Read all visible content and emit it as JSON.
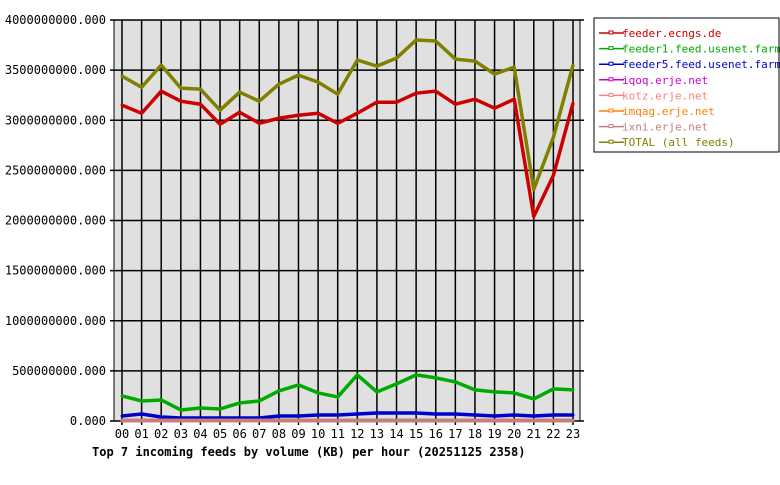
{
  "chart_data": {
    "type": "line",
    "title": "Top 7 incoming feeds by volume (KB) per hour (20251125 2358)",
    "xlabel": "",
    "ylabel": "",
    "categories": [
      "00",
      "01",
      "02",
      "03",
      "04",
      "05",
      "06",
      "07",
      "08",
      "09",
      "10",
      "11",
      "12",
      "13",
      "14",
      "15",
      "16",
      "17",
      "18",
      "19",
      "20",
      "21",
      "22",
      "23"
    ],
    "ylim": [
      0,
      4000000000
    ],
    "yticks": [
      0,
      500000000,
      1000000000,
      1500000000,
      2000000000,
      2500000000,
      3000000000,
      3500000000,
      4000000000
    ],
    "ytick_labels": [
      "0.000",
      "500000000.000",
      "1000000000.000",
      "1500000000.000",
      "2000000000.000",
      "2500000000.000",
      "3000000000.000",
      "3500000000.000",
      "4000000000.000"
    ],
    "grid": true,
    "legend_position": "right",
    "series": [
      {
        "name": "feeder.ecngs.de",
        "color": "#cc0000",
        "values": [
          3150000000,
          3070000000,
          3290000000,
          3190000000,
          3160000000,
          2960000000,
          3080000000,
          2970000000,
          3020000000,
          3050000000,
          3070000000,
          2970000000,
          3070000000,
          3180000000,
          3180000000,
          3270000000,
          3290000000,
          3160000000,
          3210000000,
          3120000000,
          3210000000,
          2040000000,
          2450000000,
          3170000000
        ]
      },
      {
        "name": "feeder1.feed.usenet.farm",
        "color": "#00aa00",
        "values": [
          250000000,
          200000000,
          210000000,
          110000000,
          130000000,
          120000000,
          180000000,
          200000000,
          300000000,
          360000000,
          280000000,
          240000000,
          460000000,
          290000000,
          370000000,
          460000000,
          430000000,
          390000000,
          310000000,
          290000000,
          280000000,
          220000000,
          320000000,
          310000000
        ]
      },
      {
        "name": "feeder5.feed.usenet.farm",
        "color": "#0000cc",
        "values": [
          50000000,
          70000000,
          40000000,
          30000000,
          30000000,
          30000000,
          30000000,
          30000000,
          50000000,
          50000000,
          60000000,
          60000000,
          70000000,
          80000000,
          80000000,
          80000000,
          70000000,
          70000000,
          60000000,
          50000000,
          60000000,
          50000000,
          60000000,
          60000000
        ]
      },
      {
        "name": "iqoq.erje.net",
        "color": "#cc00cc",
        "values": [
          5000000,
          5000000,
          5000000,
          5000000,
          5000000,
          5000000,
          5000000,
          5000000,
          5000000,
          5000000,
          5000000,
          5000000,
          5000000,
          5000000,
          5000000,
          5000000,
          5000000,
          5000000,
          5000000,
          5000000,
          5000000,
          5000000,
          5000000,
          5000000
        ]
      },
      {
        "name": "kotz.erje.net",
        "color": "#ff8080",
        "values": [
          5000000,
          5000000,
          5000000,
          5000000,
          5000000,
          5000000,
          5000000,
          5000000,
          5000000,
          5000000,
          5000000,
          5000000,
          5000000,
          5000000,
          5000000,
          5000000,
          5000000,
          5000000,
          5000000,
          5000000,
          5000000,
          5000000,
          5000000,
          5000000
        ]
      },
      {
        "name": "imqag.erje.net",
        "color": "#ff8000",
        "values": [
          5000000,
          5000000,
          5000000,
          5000000,
          5000000,
          5000000,
          5000000,
          5000000,
          5000000,
          5000000,
          5000000,
          5000000,
          5000000,
          5000000,
          5000000,
          5000000,
          5000000,
          5000000,
          5000000,
          5000000,
          5000000,
          5000000,
          5000000,
          5000000
        ]
      },
      {
        "name": "ixni.erje.net",
        "color": "#c08080",
        "values": [
          5000000,
          5000000,
          5000000,
          5000000,
          5000000,
          5000000,
          5000000,
          5000000,
          5000000,
          5000000,
          5000000,
          5000000,
          5000000,
          5000000,
          5000000,
          5000000,
          5000000,
          5000000,
          5000000,
          5000000,
          5000000,
          5000000,
          5000000,
          5000000
        ]
      },
      {
        "name": "TOTAL (all feeds)",
        "color": "#808000",
        "values": [
          3440000000,
          3330000000,
          3550000000,
          3320000000,
          3310000000,
          3100000000,
          3280000000,
          3190000000,
          3360000000,
          3450000000,
          3380000000,
          3260000000,
          3600000000,
          3540000000,
          3620000000,
          3800000000,
          3790000000,
          3610000000,
          3590000000,
          3460000000,
          3530000000,
          2310000000,
          2830000000,
          3550000000
        ]
      }
    ]
  }
}
